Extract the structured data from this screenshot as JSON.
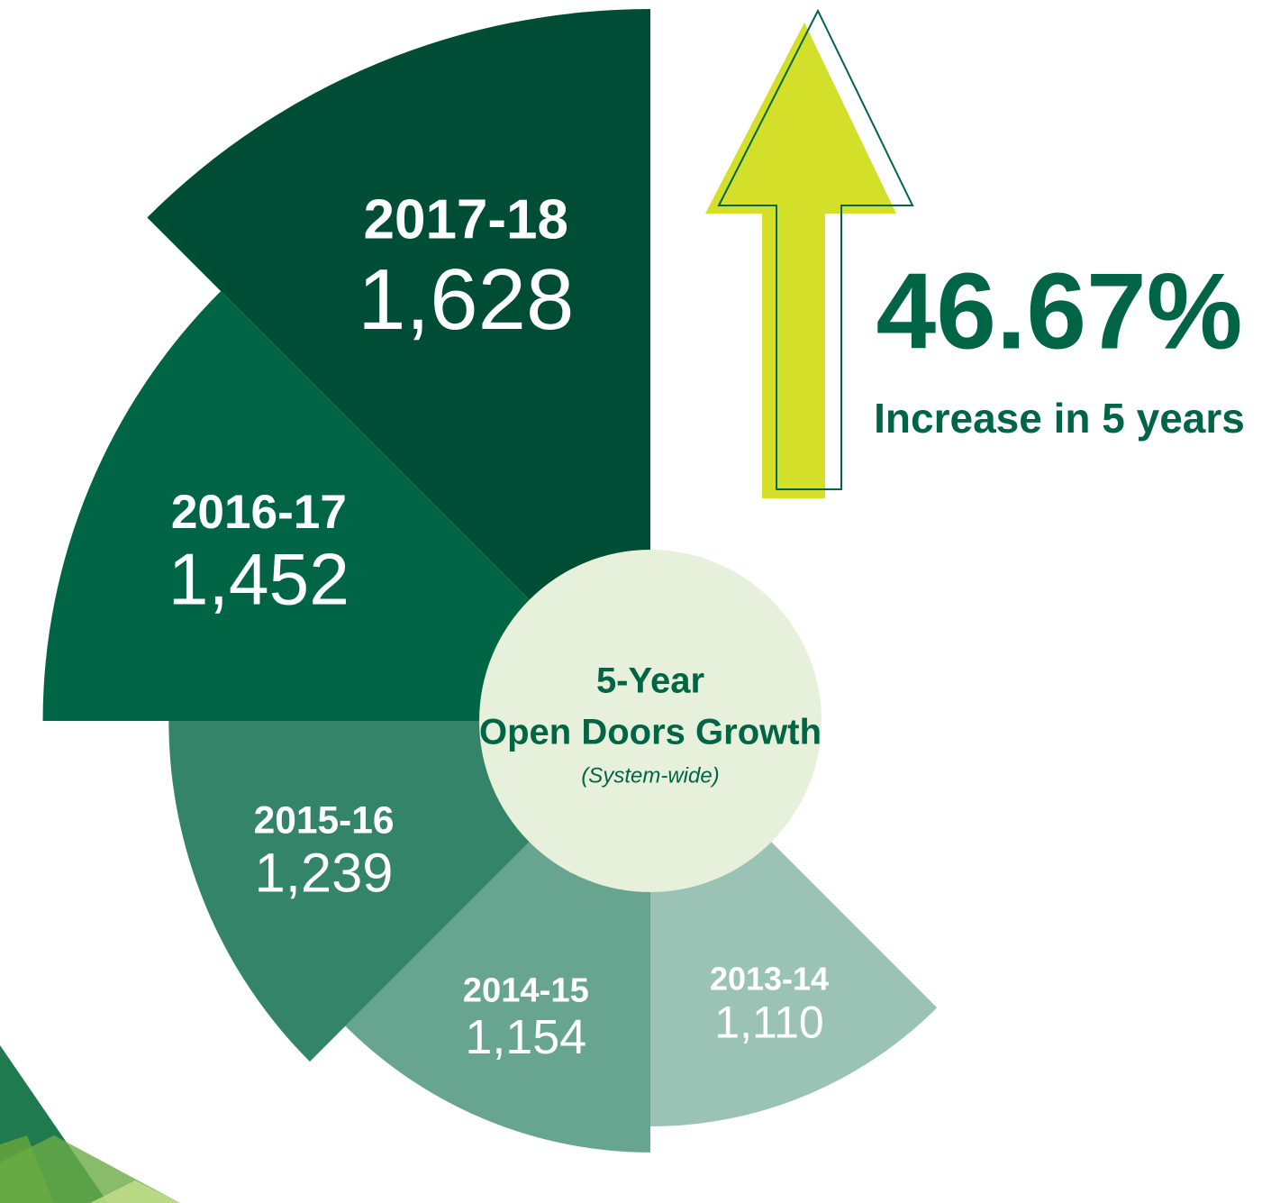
{
  "chart_data": {
    "type": "polar-area",
    "title": [
      "5-Year",
      "Open Doors Growth"
    ],
    "subtitle": "(System-wide)",
    "categories": [
      "2013-14",
      "2014-15",
      "2015-16",
      "2016-17",
      "2017-18"
    ],
    "values": [
      1110,
      1154,
      1239,
      1452,
      1628
    ],
    "value_labels": [
      "1,110",
      "1,154",
      "1,239",
      "1,452",
      "1,628"
    ],
    "colors": [
      "#9bc3b5",
      "#68a591",
      "#348469",
      "#006545",
      "#004d36"
    ],
    "annotation": {
      "text": "46.67%",
      "caption": "Increase in 5 years"
    }
  }
}
